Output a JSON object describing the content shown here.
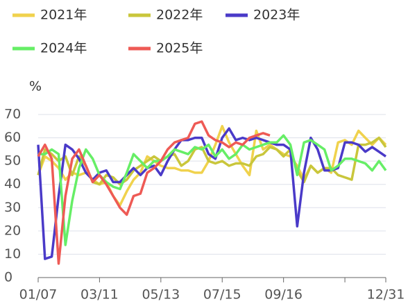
{
  "chart_data": {
    "type": "line",
    "y_label": "%",
    "categories": [
      "01/07",
      null,
      null,
      null,
      null,
      null,
      null,
      null,
      null,
      "03/11",
      null,
      null,
      null,
      null,
      null,
      null,
      null,
      null,
      "05/13",
      null,
      null,
      null,
      null,
      null,
      null,
      null,
      null,
      "07/15",
      null,
      null,
      null,
      null,
      null,
      null,
      null,
      null,
      "09/16",
      null,
      null,
      null,
      null,
      null,
      null,
      null,
      null,
      null,
      null,
      null,
      null,
      null,
      null,
      "12/31"
    ],
    "ylim": [
      0,
      70
    ],
    "yticks": [
      0,
      10,
      20,
      30,
      40,
      50,
      60,
      70
    ],
    "grid": true,
    "series": [
      {
        "name": "2021年",
        "color": "#f0d24d",
        "values": [
          44,
          52,
          50,
          47,
          42,
          45,
          44,
          45,
          42,
          40,
          41,
          35,
          31,
          37,
          42,
          45,
          52,
          50,
          48,
          47,
          47,
          46,
          46,
          45,
          45,
          50,
          57,
          65,
          58,
          53,
          48,
          44,
          63,
          55,
          57,
          55,
          53,
          52,
          48,
          42,
          48,
          45,
          47,
          45,
          58,
          59,
          57,
          63,
          60,
          57,
          60,
          57
        ]
      },
      {
        "name": "2022年",
        "color": "#c9c63b",
        "values": [
          44,
          55,
          53,
          50,
          52,
          44,
          52,
          48,
          41,
          40,
          44,
          43,
          40,
          42,
          46,
          48,
          50,
          52,
          50,
          52,
          53,
          48,
          50,
          55,
          56,
          50,
          49,
          50,
          48,
          49,
          49,
          48,
          52,
          53,
          56,
          55,
          52,
          55,
          46,
          41,
          48,
          45,
          47,
          47,
          44,
          43,
          42,
          57,
          57,
          58,
          60,
          56
        ]
      },
      {
        "name": "2023年",
        "color": "#4a3ac8",
        "values": [
          57,
          8,
          9,
          35,
          57,
          55,
          51,
          45,
          42,
          45,
          46,
          41,
          41,
          44,
          47,
          44,
          47,
          48,
          44,
          50,
          55,
          59,
          59,
          60,
          60,
          53,
          51,
          60,
          64,
          59,
          60,
          59,
          60,
          59,
          58,
          57,
          57,
          55,
          22,
          45,
          60,
          55,
          46,
          46,
          47,
          58,
          58,
          57,
          54,
          56,
          54,
          52
        ]
      },
      {
        "name": "2024年",
        "color": "#66ee66",
        "values": [
          53,
          53,
          55,
          53,
          14,
          33,
          47,
          55,
          51,
          44,
          41,
          39,
          38,
          45,
          53,
          50,
          47,
          50,
          50,
          52,
          55,
          54,
          53,
          56,
          55,
          57,
          52,
          55,
          51,
          53,
          57,
          55,
          56,
          57,
          58,
          58,
          61,
          57,
          44,
          58,
          59,
          57,
          55,
          46,
          48,
          51,
          51,
          50,
          49,
          46,
          50,
          46
        ]
      },
      {
        "name": "2025年",
        "color": "#ee5a55",
        "values": [
          52,
          57,
          51,
          6,
          35,
          51,
          55,
          48,
          41,
          44,
          40,
          35,
          30,
          27,
          35,
          36,
          45,
          47,
          50,
          55,
          58,
          59,
          60,
          66,
          67,
          61,
          59,
          58,
          56,
          58,
          57,
          60,
          61,
          62,
          61,
          null,
          null,
          null,
          null,
          null,
          null,
          null,
          null,
          null,
          null,
          null,
          null,
          null,
          null,
          null,
          null,
          null
        ]
      }
    ]
  }
}
